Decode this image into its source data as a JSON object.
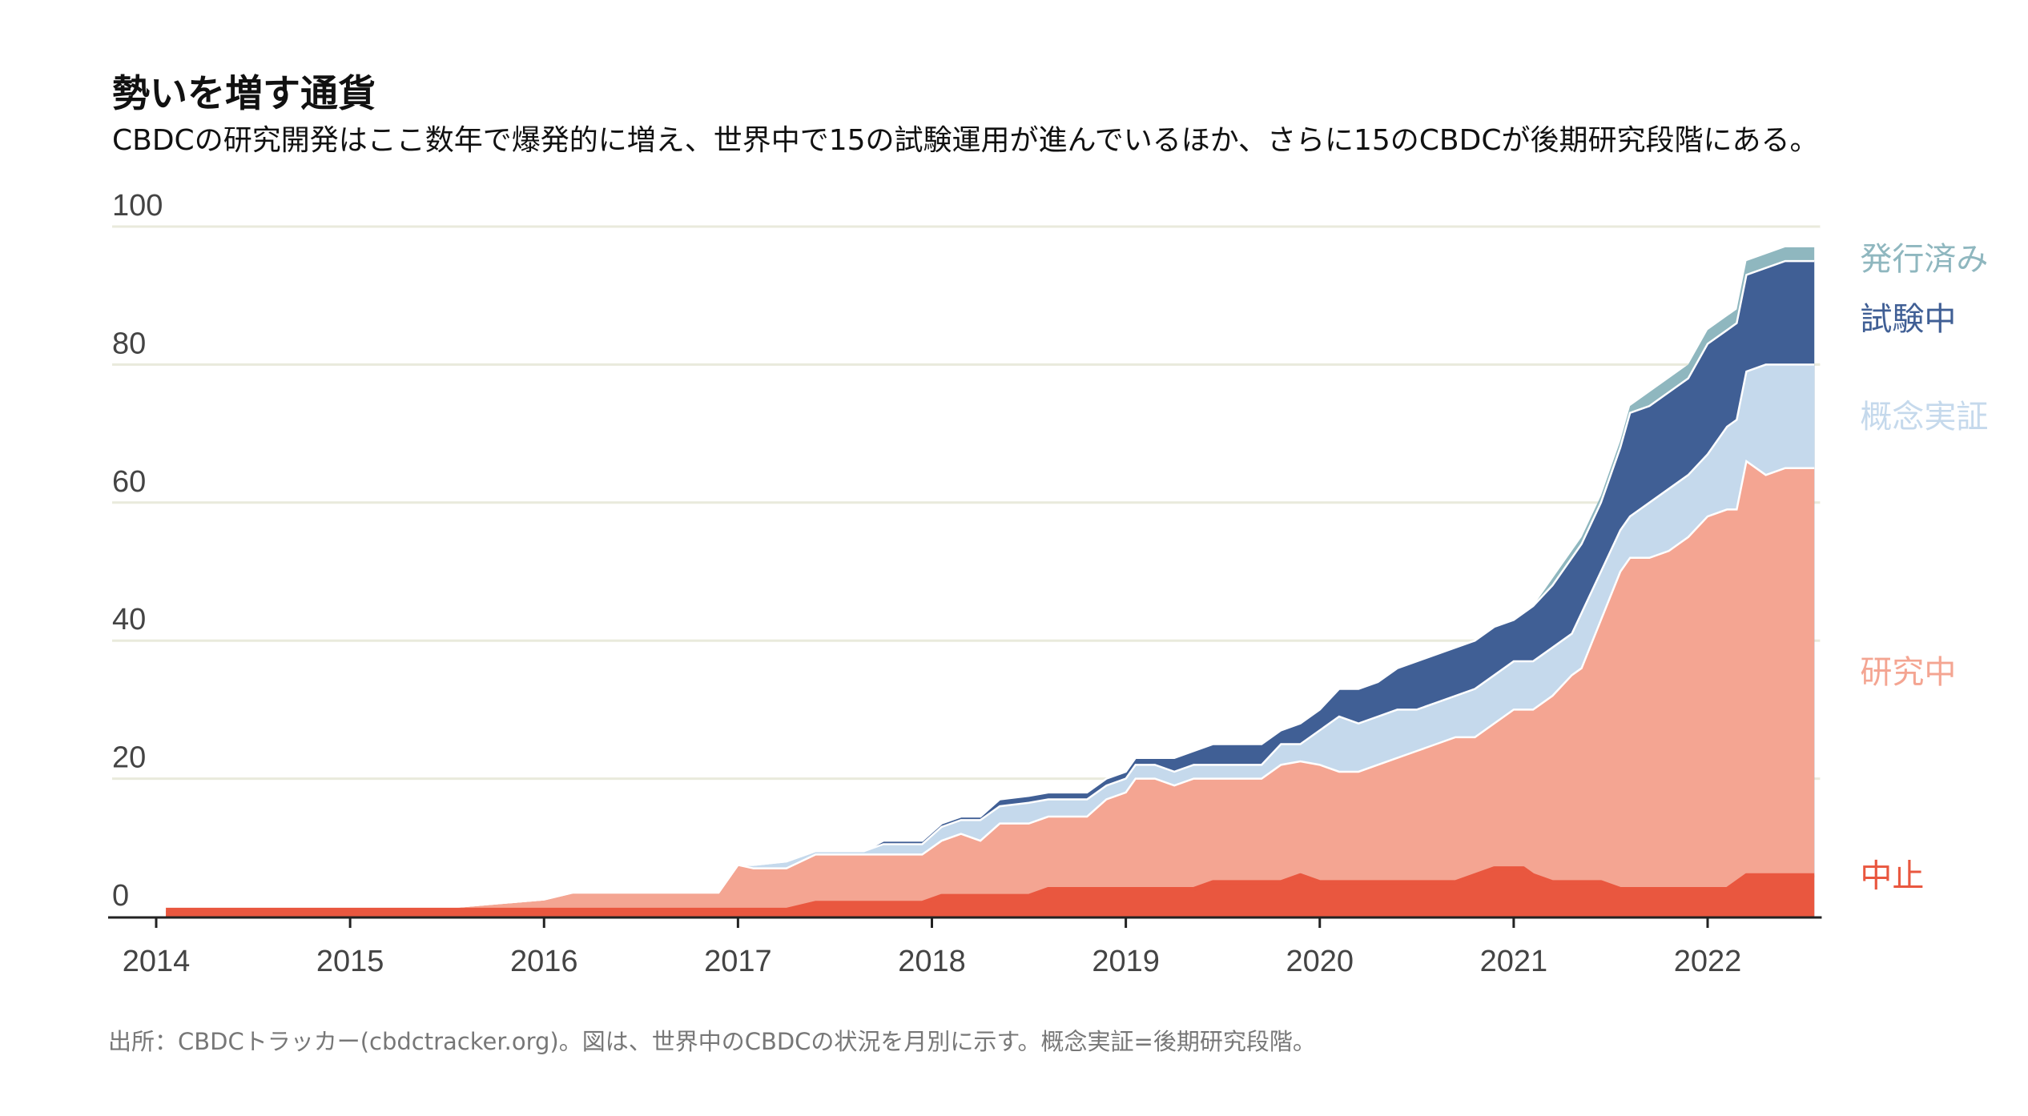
{
  "title": "勢いを増す通貨",
  "subtitle": "CBDCの研究開発はここ数年で爆発的に増え、世界中で15の試験運用が進んでいるほか、さらに15のCBDCが後期研究段階にある。",
  "source": "出所：CBDCトラッカー(cbdctracker.org)。図は、世界中のCBDCの状況を月別に示す。概念実証=後期研究段階。",
  "chart_data": {
    "type": "area",
    "stacked": true,
    "ylim": [
      0,
      100
    ],
    "yticks": [
      0,
      20,
      40,
      60,
      80,
      100
    ],
    "xlim": [
      2014.0,
      2022.58
    ],
    "xticks": [
      "2014",
      "2015",
      "2016",
      "2017",
      "2018",
      "2019",
      "2020",
      "2021",
      "2022"
    ],
    "grid": true,
    "legend": "right",
    "x": [
      2014.05,
      2015.5,
      2016.0,
      2016.15,
      2016.9,
      2017.0,
      2017.08,
      2017.25,
      2017.4,
      2017.65,
      2017.75,
      2017.9,
      2017.95,
      2018.05,
      2018.15,
      2018.25,
      2018.35,
      2018.5,
      2018.6,
      2018.8,
      2018.9,
      2019.0,
      2019.05,
      2019.15,
      2019.25,
      2019.35,
      2019.45,
      2019.6,
      2019.7,
      2019.8,
      2019.9,
      2020.0,
      2020.1,
      2020.2,
      2020.3,
      2020.4,
      2020.5,
      2020.6,
      2020.7,
      2020.8,
      2020.9,
      2021.0,
      2021.05,
      2021.1,
      2021.2,
      2021.3,
      2021.35,
      2021.45,
      2021.55,
      2021.6,
      2021.7,
      2021.8,
      2021.85,
      2021.9,
      2022.0,
      2022.1,
      2022.15,
      2022.2,
      2022.3,
      2022.4,
      2022.55
    ],
    "series": [
      {
        "name": "中止",
        "color": "#e9573f",
        "values": [
          1,
          1,
          1,
          1,
          1,
          1,
          1,
          1,
          2,
          2,
          2,
          2,
          2,
          3,
          3,
          3,
          3,
          3,
          4,
          4,
          4,
          4,
          4,
          4,
          4,
          4,
          5,
          5,
          5,
          5,
          6,
          5,
          5,
          5,
          5,
          5,
          5,
          5,
          5,
          6,
          7,
          7,
          7,
          6,
          5,
          5,
          5,
          5,
          4,
          4,
          4,
          4,
          4,
          4,
          4,
          4,
          5,
          6,
          6,
          6,
          6
        ]
      },
      {
        "name": "研究中",
        "color": "#f4a592",
        "values": [
          1,
          1.3,
          2.5,
          3.5,
          3.5,
          7.5,
          7,
          7,
          9,
          9,
          9,
          9,
          9,
          11,
          12,
          11,
          13.5,
          13.5,
          14.5,
          14.5,
          17,
          18,
          20,
          20,
          19,
          20,
          20,
          20,
          20,
          22,
          22.5,
          22,
          21,
          21,
          22,
          23,
          24,
          25,
          26,
          26,
          28,
          30,
          30,
          30,
          32,
          35,
          36,
          43,
          50,
          52,
          52,
          53,
          54,
          55,
          58,
          59,
          59,
          66,
          64,
          65,
          65
        ]
      },
      {
        "name": "概念実証",
        "color": "#c5d9ec",
        "values": [
          1,
          1.3,
          2.5,
          3.5,
          3.5,
          7.5,
          7.5,
          8,
          9.5,
          9.5,
          10.5,
          10.5,
          10.5,
          13,
          14,
          14,
          16,
          16.5,
          17,
          17,
          19,
          20,
          22,
          22,
          21,
          22,
          22,
          22,
          22,
          25,
          25,
          27,
          29,
          28,
          29,
          30,
          30,
          31,
          32,
          33,
          35,
          37,
          37,
          37,
          39,
          41,
          44,
          50,
          56,
          58,
          60,
          62,
          63,
          64,
          67,
          71,
          72,
          79,
          80,
          80,
          80
        ]
      },
      {
        "name": "試験中",
        "color": "#405f95",
        "values": [
          1,
          1.3,
          2.5,
          3.5,
          3.5,
          7.5,
          7.5,
          8,
          9.5,
          9.5,
          11,
          11,
          11,
          13.5,
          14.5,
          14.5,
          17,
          17.5,
          18,
          18,
          20,
          21,
          23,
          23,
          23,
          24,
          25,
          25,
          25,
          27,
          28,
          30,
          33,
          33,
          34,
          36,
          37,
          38,
          39,
          40,
          42,
          43,
          44,
          45,
          48,
          52,
          54,
          60,
          68,
          73,
          74,
          76,
          77,
          78,
          83,
          85,
          86,
          93,
          94,
          95,
          95
        ]
      },
      {
        "name": "発行済み",
        "color": "#8fb7bf",
        "values": [
          1,
          1.3,
          2.5,
          3.5,
          3.5,
          7.5,
          7.5,
          8,
          9.5,
          9.5,
          11,
          11,
          11,
          13.5,
          14.5,
          14.5,
          17,
          17.5,
          18,
          18,
          20,
          21,
          23,
          23,
          23,
          24,
          25,
          25,
          25,
          27,
          28,
          30,
          33,
          33,
          34,
          36,
          37,
          38,
          39,
          40,
          42,
          43,
          44,
          45,
          49,
          53,
          55,
          61,
          69,
          74,
          76,
          78,
          79,
          80,
          85,
          87,
          88,
          95,
          96,
          97,
          97
        ]
      }
    ]
  },
  "colors": {
    "grid": "#e9eadc",
    "axis": "#222222",
    "boundary": "#ffffff"
  }
}
